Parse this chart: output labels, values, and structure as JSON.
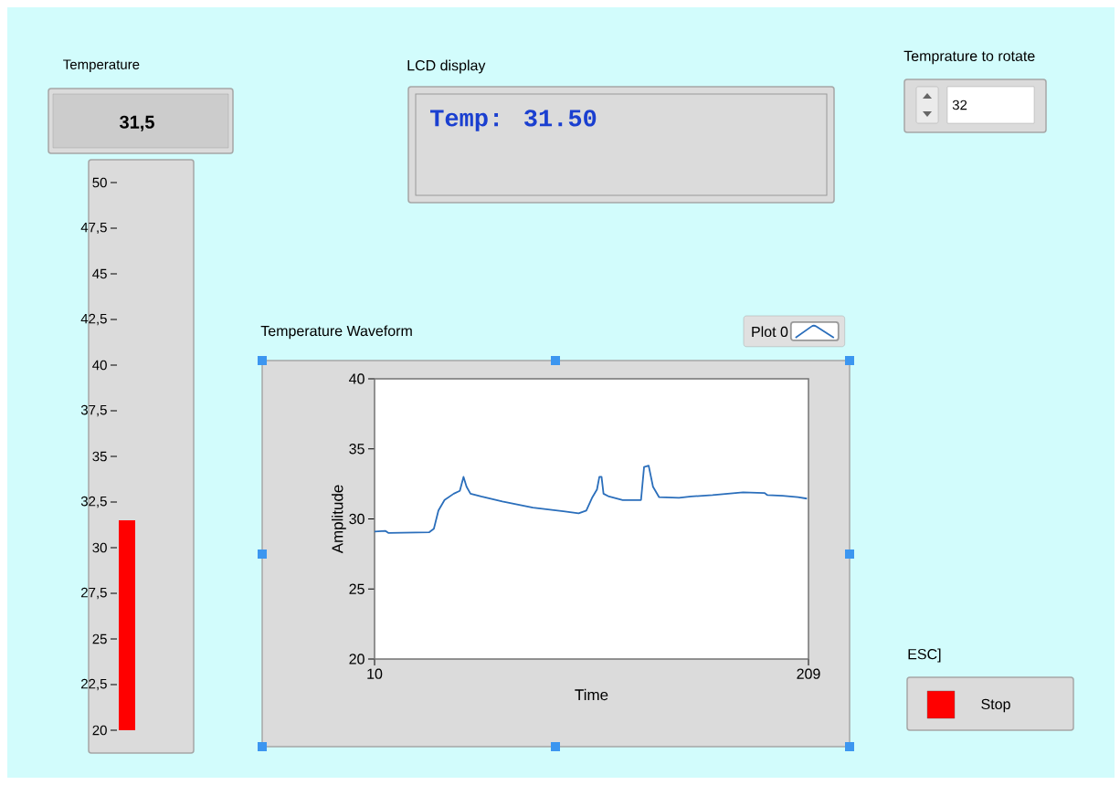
{
  "chart_data": [
    {
      "type": "bar",
      "title": "Temperature",
      "categories": [
        null
      ],
      "values": [
        31.5
      ],
      "annotations": [
        "31,5"
      ],
      "color": "#ff0000",
      "ylim": [
        20,
        50
      ],
      "yticks": [
        20,
        {
          "value": 22.5,
          "label": "22,5"
        },
        25,
        {
          "value": 27.5,
          "label": "27,5"
        },
        30,
        {
          "value": 32.5,
          "label": "32,5"
        },
        35,
        {
          "value": 37.5,
          "label": "37,5"
        },
        40,
        {
          "value": 42.5,
          "label": "42,5"
        },
        45,
        {
          "value": 47.5,
          "label": "47,5"
        },
        50
      ]
    },
    {
      "type": "line",
      "title": "Temperature Waveform",
      "xlabel": "Time",
      "ylabel": "Amplitude",
      "xlim": [
        10,
        209
      ],
      "xticks": [
        10,
        209
      ],
      "ylim": [
        20,
        40
      ],
      "yticks": [
        20,
        25,
        30,
        35,
        40
      ],
      "legend": "top right",
      "series": [
        {
          "name": "Plot 0",
          "color": "#2a6ebb",
          "x": [
            10,
            14.9,
            16.3,
            35.1,
            37.2,
            39.3,
            42.1,
            46.3,
            49.1,
            50.8,
            52.2,
            54.0,
            58.9,
            68.6,
            82.6,
            96.6,
            103.6,
            107.1,
            109.9,
            112.0,
            113.1,
            114.1,
            115.0,
            117.5,
            123.8,
            132.2,
            133.6,
            135.7,
            137.7,
            140.5,
            149.6,
            155.2,
            165.0,
            179.0,
            188.8,
            190.2,
            197.1,
            204.1,
            208.3
          ],
          "values": [
            29.1,
            29.15,
            29.0,
            29.05,
            29.3,
            30.6,
            31.35,
            31.8,
            32.0,
            33.0,
            32.3,
            31.8,
            31.6,
            31.25,
            30.8,
            30.55,
            30.4,
            30.6,
            31.55,
            32.1,
            33.0,
            33.0,
            31.8,
            31.6,
            31.35,
            31.35,
            33.7,
            33.8,
            32.3,
            31.55,
            31.5,
            31.6,
            31.7,
            31.9,
            31.85,
            31.7,
            31.65,
            31.55,
            31.45
          ]
        }
      ]
    },
    {
      "type": "other",
      "title": "LCD display",
      "annotations": [
        "Temp: 31.50"
      ]
    },
    {
      "type": "other",
      "title": "Temprature to rotate",
      "annotations": [
        "32"
      ]
    },
    {
      "type": "other",
      "title": "ESC]",
      "annotations": [
        "Stop"
      ]
    }
  ]
}
